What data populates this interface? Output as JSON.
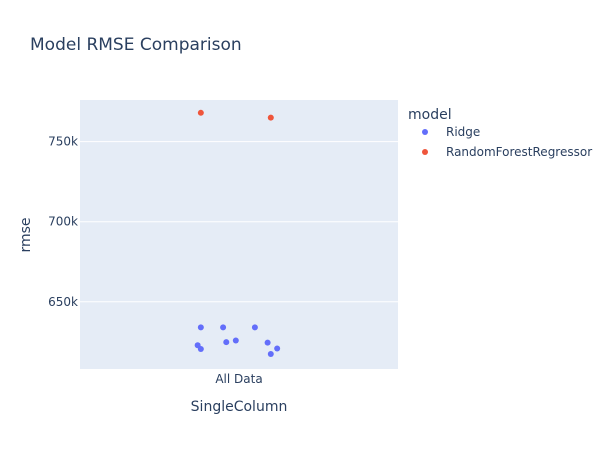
{
  "chart_data": {
    "type": "scatter",
    "title": "Model RMSE Comparison",
    "xlabel": "SingleColumn",
    "ylabel": "rmse",
    "categories": [
      "All Data"
    ],
    "ylim": [
      608000,
      776000
    ],
    "yticks": [
      650000,
      700000,
      750000
    ],
    "ytick_labels": [
      "650k",
      "700k",
      "750k"
    ],
    "grid": true,
    "legend_title": "model",
    "legend_position": "right",
    "series": [
      {
        "name": "Ridge",
        "color": "#636efa",
        "points": [
          {
            "category": "All Data",
            "jitter": -0.12,
            "y": 634000
          },
          {
            "category": "All Data",
            "jitter": -0.05,
            "y": 634000
          },
          {
            "category": "All Data",
            "jitter": 0.05,
            "y": 634000
          },
          {
            "category": "All Data",
            "jitter": -0.13,
            "y": 622800
          },
          {
            "category": "All Data",
            "jitter": -0.12,
            "y": 620500
          },
          {
            "category": "All Data",
            "jitter": -0.04,
            "y": 624800
          },
          {
            "category": "All Data",
            "jitter": -0.01,
            "y": 625800
          },
          {
            "category": "All Data",
            "jitter": 0.09,
            "y": 624500
          },
          {
            "category": "All Data",
            "jitter": 0.12,
            "y": 620800
          },
          {
            "category": "All Data",
            "jitter": 0.1,
            "y": 617400
          }
        ]
      },
      {
        "name": "RandomForestRegressor",
        "color": "#ef553b",
        "points": [
          {
            "category": "All Data",
            "jitter": -0.12,
            "y": 768000
          },
          {
            "category": "All Data",
            "jitter": 0.1,
            "y": 765000
          }
        ]
      }
    ]
  }
}
